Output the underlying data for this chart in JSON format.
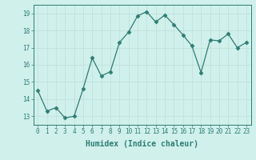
{
  "x": [
    0,
    1,
    2,
    3,
    4,
    5,
    6,
    7,
    8,
    9,
    10,
    11,
    12,
    13,
    14,
    15,
    16,
    17,
    18,
    19,
    20,
    21,
    22,
    23
  ],
  "y": [
    14.5,
    13.3,
    13.5,
    12.9,
    13.0,
    14.6,
    16.4,
    15.35,
    15.6,
    17.3,
    17.9,
    18.85,
    19.1,
    18.5,
    18.9,
    18.35,
    17.75,
    17.1,
    15.55,
    17.45,
    17.4,
    17.8,
    17.0,
    17.3
  ],
  "line_color": "#2e7d72",
  "marker": "D",
  "marker_size": 2.5,
  "bg_color": "#d0f0ec",
  "grid_color": "#c0dcd8",
  "xlabel": "Humidex (Indice chaleur)",
  "xlim": [
    -0.5,
    23.5
  ],
  "ylim": [
    12.5,
    19.5
  ],
  "yticks": [
    13,
    14,
    15,
    16,
    17,
    18,
    19
  ],
  "xticks": [
    0,
    1,
    2,
    3,
    4,
    5,
    6,
    7,
    8,
    9,
    10,
    11,
    12,
    13,
    14,
    15,
    16,
    17,
    18,
    19,
    20,
    21,
    22,
    23
  ],
  "tick_fontsize": 5.5,
  "xlabel_fontsize": 7.0
}
